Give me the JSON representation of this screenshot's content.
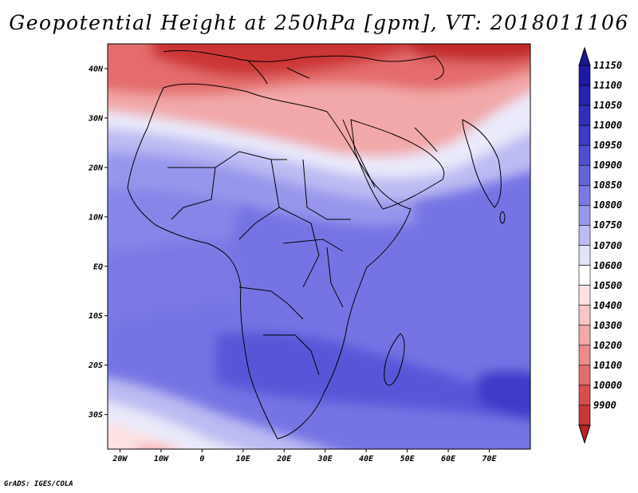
{
  "title": "Geopotential Height at 250hPa [gpm], VT: 2018011106",
  "footer": "GrADS: IGES/COLA",
  "map": {
    "variable": "Geopotential Height at 250hPa",
    "units": "gpm",
    "valid_time": "2018011106",
    "lon_range": [
      -23,
      80
    ],
    "lat_range": [
      -37,
      45
    ],
    "lat_ticks": [
      {
        "value": 40,
        "label": "40N"
      },
      {
        "value": 30,
        "label": "30N"
      },
      {
        "value": 20,
        "label": "20N"
      },
      {
        "value": 10,
        "label": "10N"
      },
      {
        "value": 0,
        "label": "EQ"
      },
      {
        "value": -10,
        "label": "10S"
      },
      {
        "value": -20,
        "label": "20S"
      },
      {
        "value": -30,
        "label": "30S"
      }
    ],
    "lon_ticks": [
      {
        "value": -20,
        "label": "20W"
      },
      {
        "value": -10,
        "label": "10W"
      },
      {
        "value": 0,
        "label": "0"
      },
      {
        "value": 10,
        "label": "10E"
      },
      {
        "value": 20,
        "label": "20E"
      },
      {
        "value": 30,
        "label": "30E"
      },
      {
        "value": 40,
        "label": "40E"
      },
      {
        "value": 50,
        "label": "50E"
      },
      {
        "value": 60,
        "label": "60E"
      },
      {
        "value": 70,
        "label": "70E"
      }
    ]
  },
  "colorbar": {
    "levels": [
      {
        "label": "11150",
        "color": "#1d18a8"
      },
      {
        "label": "11100",
        "color": "#2622b2"
      },
      {
        "label": "11050",
        "color": "#312dbd"
      },
      {
        "label": "11000",
        "color": "#3d3ac7"
      },
      {
        "label": "10950",
        "color": "#4e4cd3"
      },
      {
        "label": "10900",
        "color": "#6462dd"
      },
      {
        "label": "10850",
        "color": "#7b79e5"
      },
      {
        "label": "10800",
        "color": "#9896ec"
      },
      {
        "label": "10750",
        "color": "#bcbbf3"
      },
      {
        "label": "10700",
        "color": "#e2e2fa"
      },
      {
        "label": "10600",
        "color": "#ffffff"
      },
      {
        "label": "10500",
        "color": "#fde2e2"
      },
      {
        "label": "10400",
        "color": "#f8c6c6"
      },
      {
        "label": "10300",
        "color": "#f2a8a8"
      },
      {
        "label": "10200",
        "color": "#ec8a8a"
      },
      {
        "label": "10100",
        "color": "#e46c6c"
      },
      {
        "label": "10000",
        "color": "#db4d4d"
      },
      {
        "label": "9900",
        "color": "#cc3535"
      }
    ],
    "over_color": "#1a1590",
    "under_color": "#b82525"
  }
}
